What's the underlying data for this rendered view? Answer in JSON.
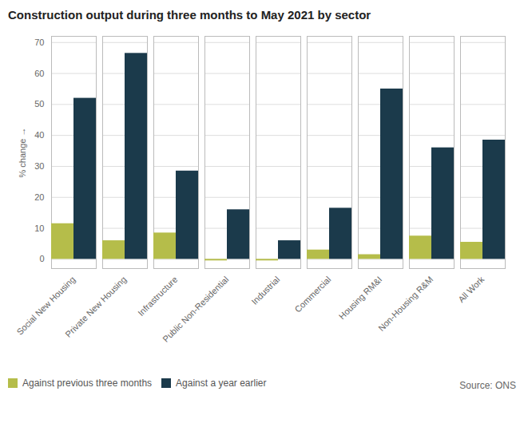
{
  "chart_data": {
    "type": "bar",
    "title": "Construction output during three months to May 2021 by sector",
    "categories": [
      "Social New Housing",
      "Private New Housing",
      "Infrastructure",
      "Public Non-Residential",
      "Industrial",
      "Commercial",
      "Housing RM&I",
      "Non-Housing R&M",
      "All Work"
    ],
    "series": [
      {
        "name": "Against previous three months",
        "color": "#b5bd4a",
        "values": [
          11.5,
          6.0,
          8.5,
          -0.5,
          -0.5,
          3.0,
          1.5,
          7.5,
          5.5
        ]
      },
      {
        "name": "Against a year earlier",
        "color": "#1b3a4b",
        "values": [
          52.0,
          66.5,
          28.5,
          16.0,
          6.0,
          16.5,
          55.0,
          36.0,
          38.5
        ]
      }
    ],
    "ylabel": "% change",
    "ylim": [
      -3,
      72
    ],
    "yticks": [
      0,
      10,
      20,
      30,
      40,
      50,
      60,
      70
    ],
    "grid": true,
    "legend": "bottom",
    "annotations": [
      "Source: ONS"
    ]
  }
}
